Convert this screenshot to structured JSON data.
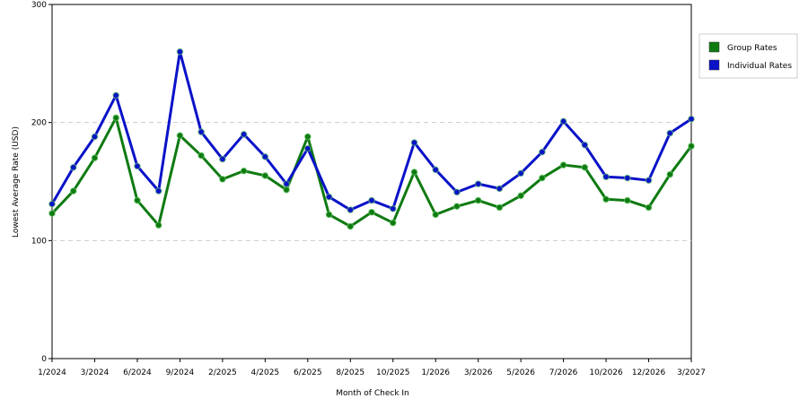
{
  "chart_data": {
    "type": "line",
    "x_label": "Month of Check In",
    "y_label": "Lowest Average Rate (USD)",
    "categories": [
      "1/2024",
      null,
      "3/2024",
      null,
      "6/2024",
      null,
      "9/2024",
      null,
      "2/2025",
      null,
      "4/2025",
      null,
      "6/2025",
      null,
      "8/2025",
      null,
      "10/2025",
      null,
      "1/2026",
      null,
      "3/2026",
      null,
      "5/2026",
      null,
      "7/2026",
      null,
      "10/2026",
      null,
      "12/2026",
      null,
      "3/2027"
    ],
    "series": [
      {
        "name": "Group Rates",
        "color": "#0f7a12",
        "values": [
          123,
          142,
          170,
          204,
          134,
          113,
          189,
          172,
          152,
          159,
          155,
          143,
          188,
          122,
          112,
          124,
          115,
          158,
          122,
          129,
          134,
          128,
          138,
          153,
          164,
          162,
          135,
          134,
          128,
          156,
          180
        ]
      },
      {
        "name": "Individual Rates",
        "color": "#0a12c8",
        "values": [
          131,
          162,
          188,
          223,
          163,
          142,
          260,
          192,
          169,
          190,
          171,
          148,
          178,
          137,
          126,
          134,
          127,
          183,
          160,
          141,
          148,
          144,
          157,
          175,
          201,
          181,
          154,
          153,
          151,
          191,
          203
        ]
      }
    ],
    "ylim": [
      0,
      300
    ],
    "yticks": [
      0,
      100,
      200,
      300
    ],
    "grid": true
  }
}
